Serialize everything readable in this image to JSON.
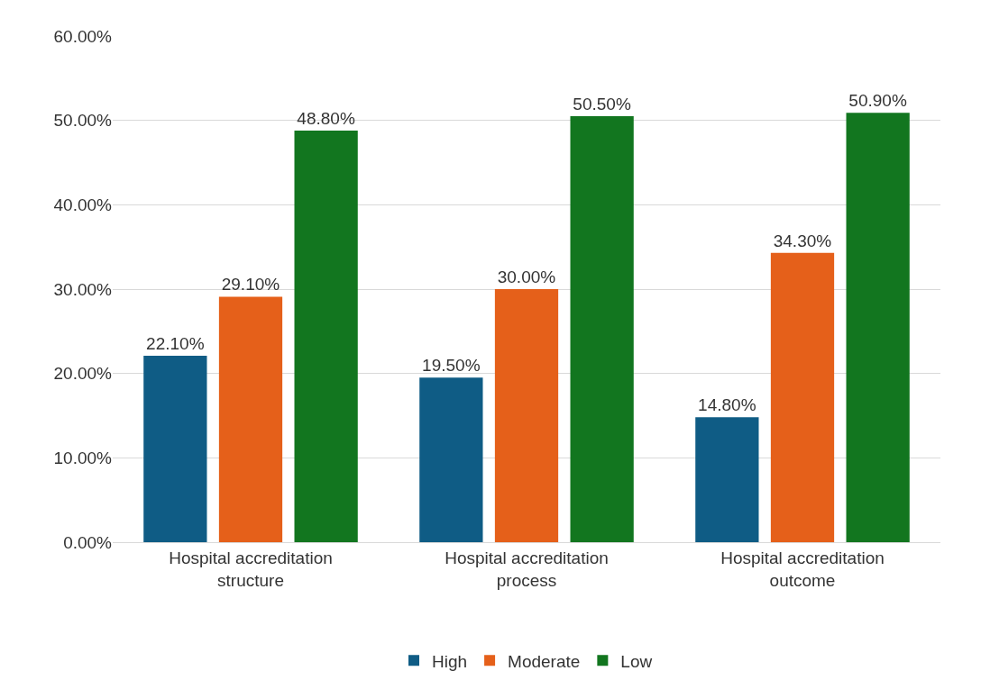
{
  "chart_data": {
    "type": "bar",
    "categories": [
      "Hospital accreditation structure",
      "Hospital accreditation process",
      "Hospital accreditation outcome"
    ],
    "series": [
      {
        "name": "High",
        "color": "#0f5c85",
        "values": [
          22.1,
          19.5,
          14.8
        ],
        "value_labels": [
          "22.10%",
          "19.50%",
          "14.80%"
        ]
      },
      {
        "name": "Moderate",
        "color": "#e5601a",
        "values": [
          29.1,
          30.0,
          34.3
        ],
        "value_labels": [
          "29.10%",
          "30.00%",
          "34.30%"
        ]
      },
      {
        "name": "Low",
        "color": "#12761f",
        "values": [
          48.8,
          50.5,
          50.9
        ],
        "value_labels": [
          "48.80%",
          "50.50%",
          "50.90%"
        ]
      }
    ],
    "ylim": [
      0,
      60
    ],
    "yticks": [
      {
        "value": 0,
        "label": "0.00%"
      },
      {
        "value": 10,
        "label": "10.00%"
      },
      {
        "value": 20,
        "label": "20.00%"
      },
      {
        "value": 30,
        "label": "30.00%"
      },
      {
        "value": 40,
        "label": "40.00%"
      },
      {
        "value": 50,
        "label": "50.00%"
      },
      {
        "value": 60,
        "label": "60.00%"
      }
    ],
    "grid": "y",
    "legend": "bottom"
  }
}
